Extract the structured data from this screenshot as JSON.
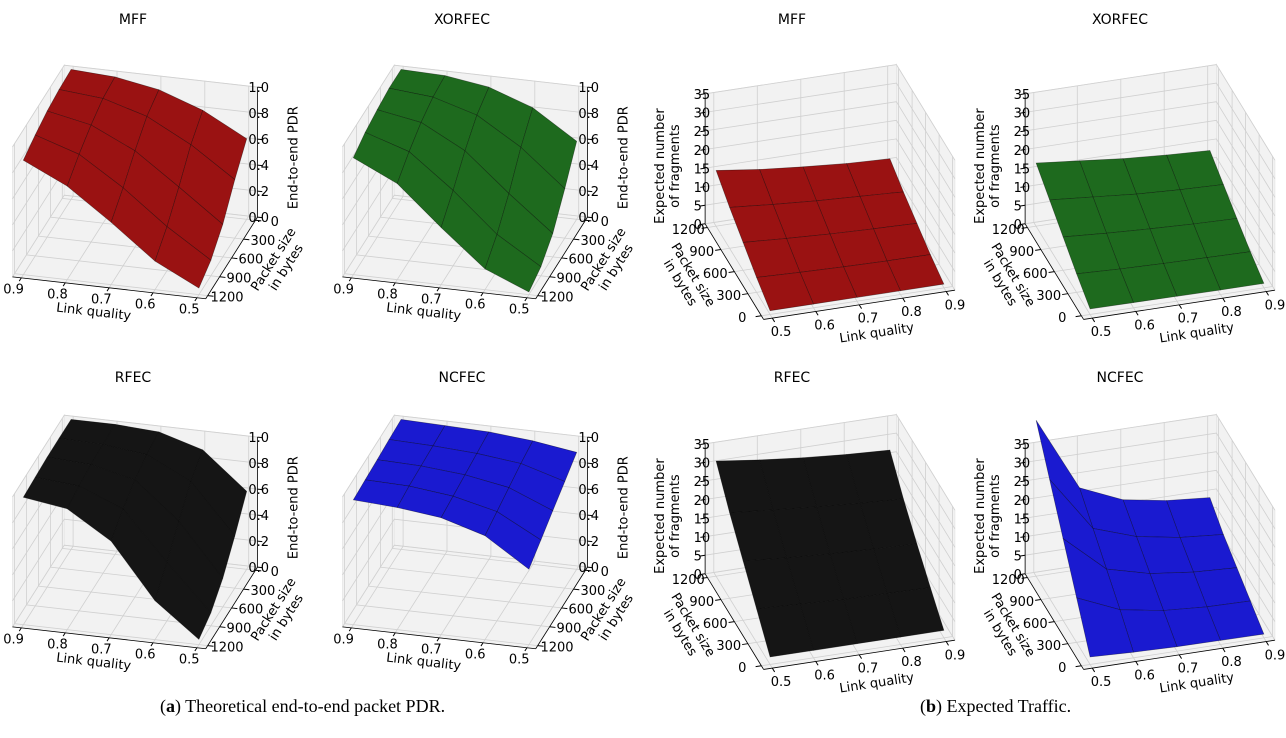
{
  "chart_data": [
    {
      "type": "surface3d",
      "title": "MFF",
      "xlabel": "Link quality",
      "ylabel": [
        "Packet size",
        "in bytes"
      ],
      "zlabel": "End-to-end PDR",
      "color": "#9a1212",
      "x": [
        0.5,
        0.6,
        0.7,
        0.8,
        0.9
      ],
      "y": [
        0,
        300,
        600,
        900,
        1200
      ],
      "z": [
        [
          0.62,
          0.8,
          0.92,
          0.98,
          1.0
        ],
        [
          0.45,
          0.68,
          0.86,
          0.96,
          0.99
        ],
        [
          0.25,
          0.5,
          0.74,
          0.9,
          0.97
        ],
        [
          0.12,
          0.34,
          0.6,
          0.82,
          0.93
        ],
        [
          0.05,
          0.22,
          0.48,
          0.72,
          0.88
        ]
      ],
      "xlim": [
        0.48,
        0.92
      ],
      "ylim": [
        -50,
        1250
      ],
      "zlim": [
        0,
        1
      ],
      "xticks": [
        0.5,
        0.6,
        0.7,
        0.8,
        0.9
      ],
      "yticks": [
        0,
        300,
        600,
        900,
        1200
      ],
      "zticks": [
        {
          "value": 0,
          "label": "0.0"
        },
        0.2,
        0.4,
        0.6,
        0.8,
        {
          "value": 1,
          "label": "1.0"
        }
      ]
    },
    {
      "type": "surface3d",
      "title": "XORFEC",
      "xlabel": "Link quality",
      "ylabel": [
        "Packet size",
        "in bytes"
      ],
      "zlabel": "End-to-end PDR",
      "color": "#1e6a1e",
      "x": [
        0.5,
        0.6,
        0.7,
        0.8,
        0.9
      ],
      "y": [
        0,
        300,
        600,
        900,
        1200
      ],
      "z": [
        [
          0.6,
          0.82,
          0.94,
          0.99,
          1.0
        ],
        [
          0.38,
          0.66,
          0.87,
          0.97,
          1.0
        ],
        [
          0.18,
          0.45,
          0.74,
          0.92,
          0.98
        ],
        [
          0.07,
          0.28,
          0.58,
          0.84,
          0.95
        ],
        [
          0.02,
          0.16,
          0.44,
          0.74,
          0.9
        ]
      ],
      "xlim": [
        0.48,
        0.92
      ],
      "ylim": [
        -50,
        1250
      ],
      "zlim": [
        0,
        1
      ],
      "xticks": [
        0.5,
        0.6,
        0.7,
        0.8,
        0.9
      ],
      "yticks": [
        0,
        300,
        600,
        900,
        1200
      ],
      "zticks": [
        {
          "value": 0,
          "label": "0.0"
        },
        0.2,
        0.4,
        0.6,
        0.8,
        {
          "value": 1,
          "label": "1.0"
        }
      ]
    },
    {
      "type": "surface3d",
      "title": "RFEC",
      "xlabel": "Link quality",
      "ylabel": [
        "Packet size",
        "in bytes"
      ],
      "zlabel": "End-to-end PDR",
      "color": "#151515",
      "x": [
        0.5,
        0.6,
        0.7,
        0.8,
        0.9
      ],
      "y": [
        0,
        300,
        600,
        900,
        1200
      ],
      "z": [
        [
          0.6,
          0.88,
          0.98,
          1.0,
          1.0
        ],
        [
          0.4,
          0.78,
          0.95,
          0.99,
          1.0
        ],
        [
          0.22,
          0.62,
          0.9,
          0.98,
          1.0
        ],
        [
          0.1,
          0.45,
          0.82,
          0.96,
          0.99
        ],
        [
          0.04,
          0.3,
          0.72,
          0.93,
          0.98
        ]
      ],
      "xlim": [
        0.48,
        0.92
      ],
      "ylim": [
        -50,
        1250
      ],
      "zlim": [
        0,
        1
      ],
      "xticks": [
        0.5,
        0.6,
        0.7,
        0.8,
        0.9
      ],
      "yticks": [
        0,
        300,
        600,
        900,
        1200
      ],
      "zticks": [
        {
          "value": 0,
          "label": "0.0"
        },
        0.2,
        0.4,
        0.6,
        0.8,
        {
          "value": 1,
          "label": "1.0"
        }
      ]
    },
    {
      "type": "surface3d",
      "title": "NCFEC",
      "xlabel": "Link quality",
      "ylabel": [
        "Packet size",
        "in bytes"
      ],
      "zlabel": "End-to-end PDR",
      "color": "#1a1ad0",
      "x": [
        0.5,
        0.6,
        0.7,
        0.8,
        0.9
      ],
      "y": [
        0,
        300,
        600,
        900,
        1200
      ],
      "z": [
        [
          0.9,
          0.95,
          0.98,
          0.99,
          1.0
        ],
        [
          0.82,
          0.92,
          0.96,
          0.98,
          0.99
        ],
        [
          0.74,
          0.88,
          0.94,
          0.97,
          0.98
        ],
        [
          0.66,
          0.84,
          0.92,
          0.96,
          0.97
        ],
        [
          0.58,
          0.8,
          0.9,
          0.94,
          0.96
        ]
      ],
      "xlim": [
        0.48,
        0.92
      ],
      "ylim": [
        -50,
        1250
      ],
      "zlim": [
        0,
        1
      ],
      "xticks": [
        0.5,
        0.6,
        0.7,
        0.8,
        0.9
      ],
      "yticks": [
        0,
        300,
        600,
        900,
        1200
      ],
      "zticks": [
        {
          "value": 0,
          "label": "0.0"
        },
        0.2,
        0.4,
        0.6,
        0.8,
        {
          "value": 1,
          "label": "1.0"
        }
      ]
    },
    {
      "type": "surface3d",
      "title": "MFF",
      "xlabel": "Link quality",
      "ylabel": [
        "Packet size",
        "in bytes"
      ],
      "zlabel": [
        "Expected number",
        "of fragments"
      ],
      "color": "#9a1212",
      "x": [
        0.5,
        0.6,
        0.7,
        0.8,
        0.9
      ],
      "y": [
        0,
        300,
        600,
        900,
        1200
      ],
      "z": [
        [
          1,
          1,
          1,
          1,
          1
        ],
        [
          4,
          3.6,
          3.3,
          3.1,
          3
        ],
        [
          7.5,
          6.8,
          6.2,
          5.8,
          5.5
        ],
        [
          11,
          10,
          9.2,
          8.6,
          8
        ],
        [
          15,
          13.5,
          12.4,
          11.5,
          11
        ]
      ],
      "xlim": [
        0.48,
        0.92
      ],
      "ylim": [
        -50,
        1250
      ],
      "zlim": [
        0,
        35
      ],
      "xticks": [
        0.5,
        0.6,
        0.7,
        0.8,
        0.9
      ],
      "yticks": [
        0,
        300,
        600,
        900,
        1200
      ],
      "zticks": [
        0,
        5,
        10,
        15,
        20,
        25,
        30,
        35
      ]
    },
    {
      "type": "surface3d",
      "title": "XORFEC",
      "xlabel": "Link quality",
      "ylabel": [
        "Packet size",
        "in bytes"
      ],
      "zlabel": [
        "Expected number",
        "of fragments"
      ],
      "color": "#1e6a1e",
      "x": [
        0.5,
        0.6,
        0.7,
        0.8,
        0.9
      ],
      "y": [
        0,
        300,
        600,
        900,
        1200
      ],
      "z": [
        [
          1.5,
          1.4,
          1.3,
          1.2,
          1.2
        ],
        [
          5,
          4.5,
          4.2,
          4,
          3.8
        ],
        [
          9,
          8.2,
          7.6,
          7.1,
          6.8
        ],
        [
          13,
          12,
          11,
          10.4,
          10
        ],
        [
          17,
          15.8,
          14.6,
          13.8,
          13.2
        ]
      ],
      "xlim": [
        0.48,
        0.92
      ],
      "ylim": [
        -50,
        1250
      ],
      "zlim": [
        0,
        35
      ],
      "xticks": [
        0.5,
        0.6,
        0.7,
        0.8,
        0.9
      ],
      "yticks": [
        0,
        300,
        600,
        900,
        1200
      ],
      "zticks": [
        0,
        5,
        10,
        15,
        20,
        25,
        30,
        35
      ]
    },
    {
      "type": "surface3d",
      "title": "RFEC",
      "xlabel": "Link quality",
      "ylabel": [
        "Packet size",
        "in bytes"
      ],
      "zlabel": [
        "Expected number",
        "of fragments"
      ],
      "color": "#151515",
      "x": [
        0.5,
        0.6,
        0.7,
        0.8,
        0.9
      ],
      "y": [
        0,
        300,
        600,
        900,
        1200
      ],
      "z": [
        [
          2,
          2,
          2,
          2,
          2
        ],
        [
          9,
          8.5,
          8,
          7.8,
          7.6
        ],
        [
          16,
          15,
          14.3,
          13.8,
          13.4
        ],
        [
          23,
          22,
          21,
          20.2,
          19.6
        ],
        [
          31,
          29.5,
          28.3,
          27.4,
          26.8
        ]
      ],
      "xlim": [
        0.48,
        0.92
      ],
      "ylim": [
        -50,
        1250
      ],
      "zlim": [
        0,
        35
      ],
      "xticks": [
        0.5,
        0.6,
        0.7,
        0.8,
        0.9
      ],
      "yticks": [
        0,
        300,
        600,
        900,
        1200
      ],
      "zticks": [
        0,
        5,
        10,
        15,
        20,
        25,
        30,
        35
      ]
    },
    {
      "type": "surface3d",
      "title": "NCFEC",
      "xlabel": "Link quality",
      "ylabel": [
        "Packet size",
        "in bytes"
      ],
      "zlabel": [
        "Expected number",
        "of fragments"
      ],
      "color": "#1a1ad0",
      "x": [
        0.5,
        0.6,
        0.7,
        0.8,
        0.9
      ],
      "y": [
        0,
        300,
        600,
        900,
        1200
      ],
      "z": [
        [
          2,
          1.5,
          1.2,
          1.1,
          1
        ],
        [
          12,
          7,
          5,
          4.2,
          4
        ],
        [
          22,
          12,
          9,
          7.6,
          7
        ],
        [
          32,
          17,
          13,
          11,
          10
        ],
        [
          42,
          22,
          17,
          15,
          14
        ]
      ],
      "xlim": [
        0.48,
        0.92
      ],
      "ylim": [
        -50,
        1250
      ],
      "zlim": [
        0,
        35
      ],
      "xticks": [
        0.5,
        0.6,
        0.7,
        0.8,
        0.9
      ],
      "yticks": [
        0,
        300,
        600,
        900,
        1200
      ],
      "zticks": [
        0,
        5,
        10,
        15,
        20,
        25,
        30,
        35
      ]
    }
  ],
  "captions": [
    {
      "open": "(",
      "label": "a",
      "text": ") Theoretical end-to-end packet PDR."
    },
    {
      "open": "(",
      "label": "b",
      "text": ") Expected Traffic."
    }
  ]
}
